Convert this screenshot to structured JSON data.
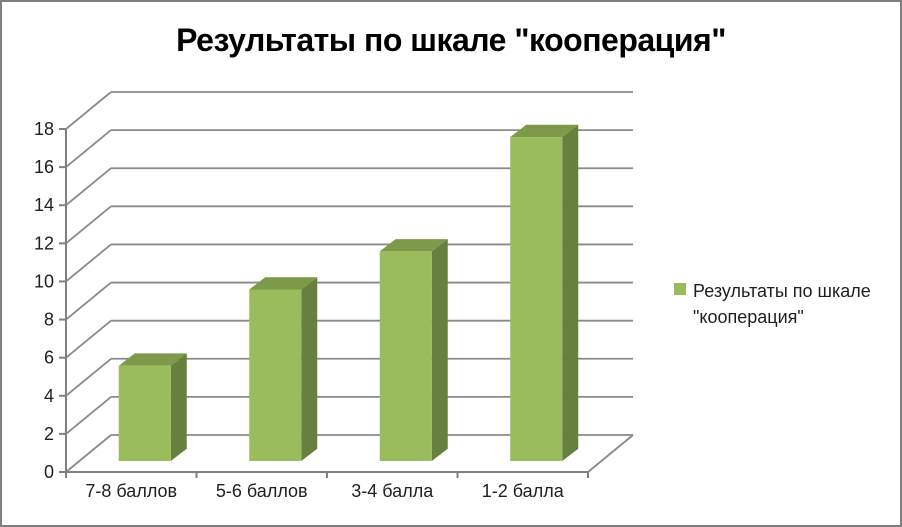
{
  "frame": {
    "border_color": "#7f7f7f",
    "background": "#ffffff"
  },
  "chart_data": {
    "type": "bar",
    "variant": "3d-clustered-column",
    "title": "Результаты по шкале \"кооперация\"",
    "categories": [
      "7-8 баллов",
      "5-6 баллов",
      "3-4 балла",
      "1-2 балла"
    ],
    "series": [
      {
        "name": "Результаты по шкале \"кооперация\"",
        "values": [
          5,
          9,
          11,
          17
        ]
      }
    ],
    "xlabel": "",
    "ylabel": "",
    "ylim": [
      0,
      18
    ],
    "ytick_step": 2,
    "yticks": [
      0,
      2,
      4,
      6,
      8,
      10,
      12,
      14,
      16,
      18
    ],
    "grid": true,
    "legend_position": "right",
    "colors": {
      "bar_front": "#9abc5c",
      "bar_side": "#68803e",
      "bar_top": "#7e9949",
      "gridline": "#8a8a8a",
      "axis": "#808080",
      "tick_text": "#1f1f1f",
      "title_text": "#000000"
    }
  }
}
